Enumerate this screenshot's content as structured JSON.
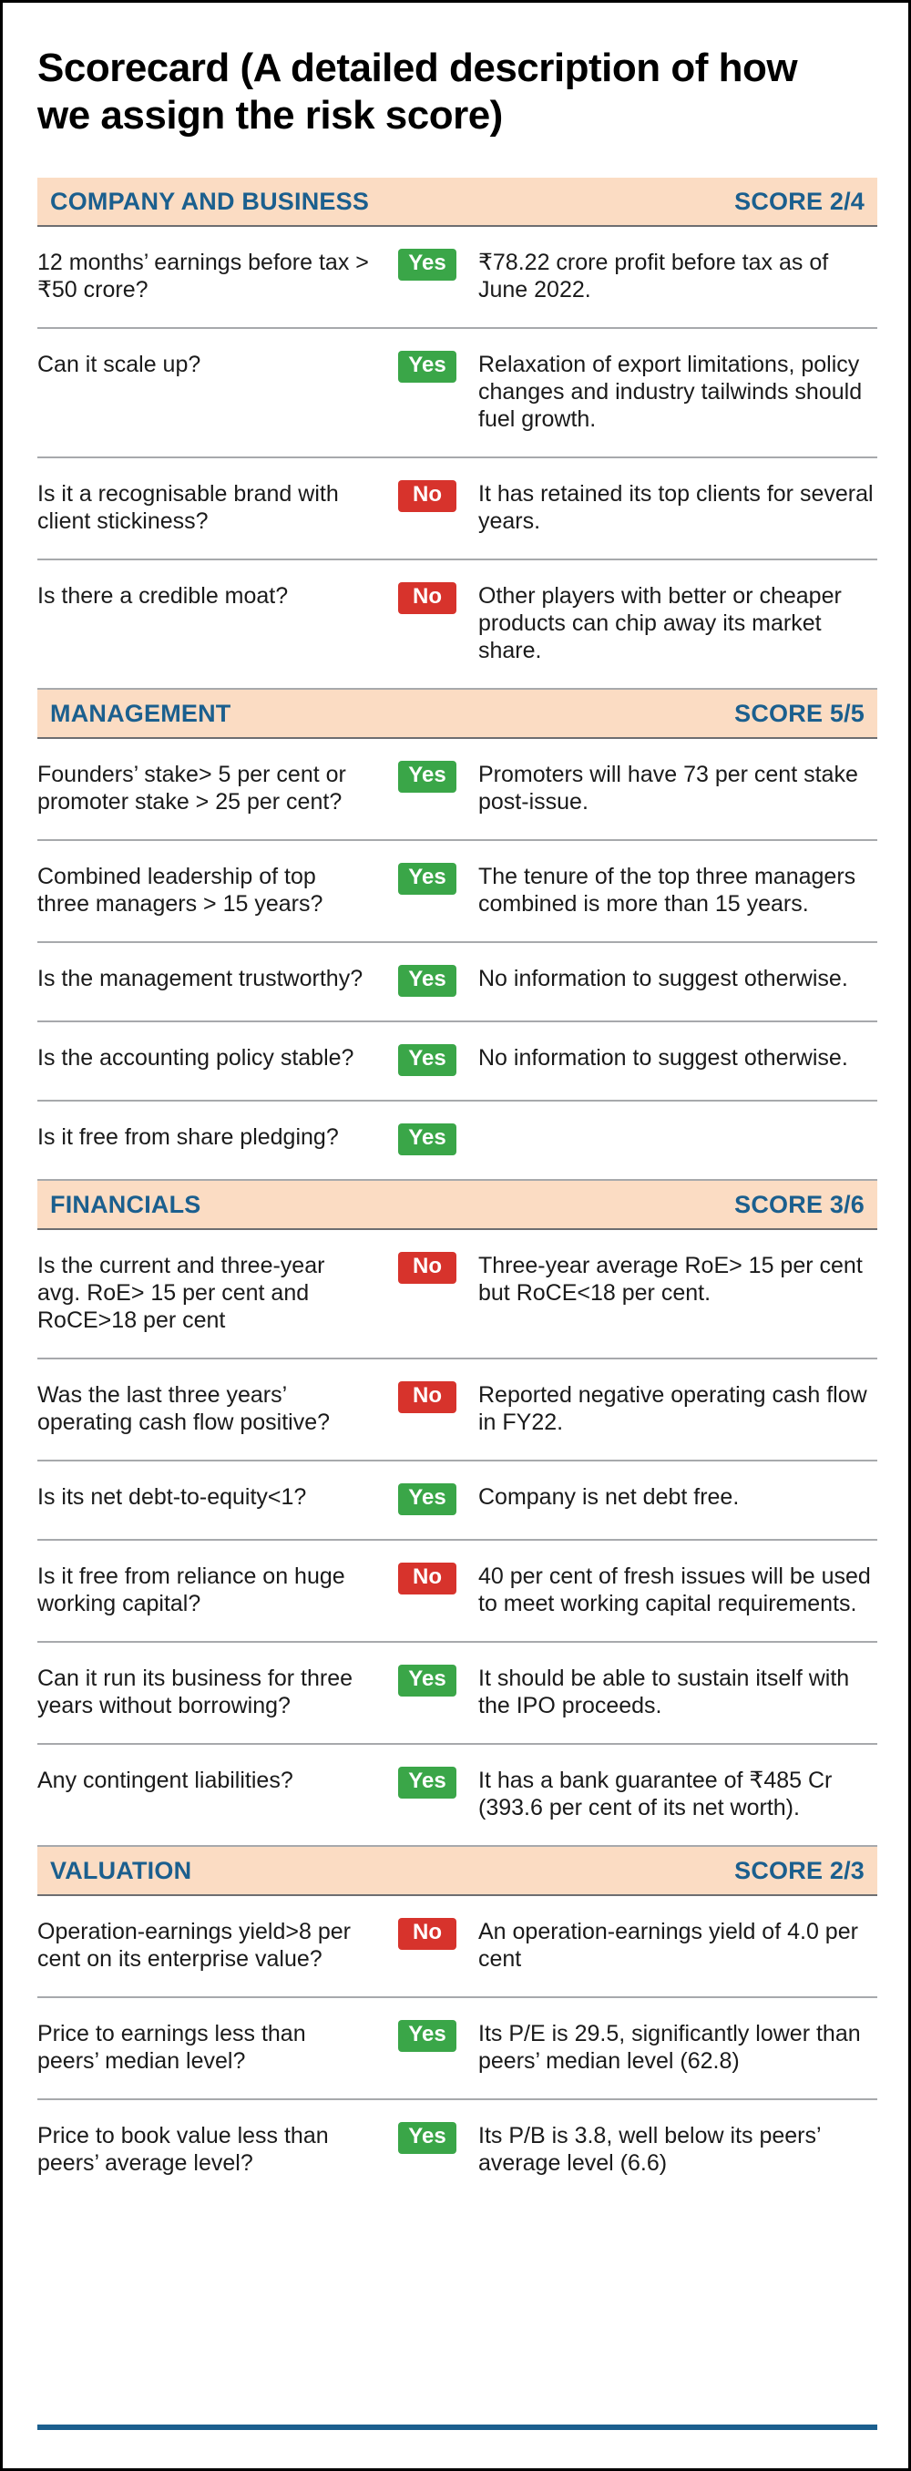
{
  "page": {
    "title_line1": "Scorecard (A detailed description of how",
    "title_line2": "we assign the risk score)"
  },
  "colors": {
    "border": "#000000",
    "title": "#000000",
    "text": "#1a1a1a",
    "header_bg": "#fbdcc3",
    "header_text": "#1b5f8e",
    "header_rule": "#6d6e71",
    "divider": "#a7a9ac",
    "yes_bg": "#3aa648",
    "no_bg": "#d7332c",
    "badge_text": "#ffffff",
    "footer_line": "#1b5f8e"
  },
  "sections": [
    {
      "name": "COMPANY AND BUSINESS",
      "score": "SCORE 2/4",
      "rows": [
        {
          "question": "12 months’ earnings before tax > ₹50 crore?",
          "answer": "Yes",
          "comment": "₹78.22 crore profit before tax as of June 2022."
        },
        {
          "question": "Can it scale up?",
          "answer": "Yes",
          "comment": "Relaxation of export limitations, policy changes and industry tailwinds should fuel growth."
        },
        {
          "question": "Is it a recognisable brand with client stickiness?",
          "answer": "No",
          "comment": "It has retained its top clients for several years."
        },
        {
          "question": "Is there a credible moat?",
          "answer": "No",
          "comment": "Other players with better or cheaper products can chip away its market share."
        }
      ]
    },
    {
      "name": "MANAGEMENT",
      "score": "SCORE 5/5",
      "rows": [
        {
          "question": "Founders’ stake> 5 per cent or promoter stake > 25 per cent?",
          "answer": "Yes",
          "comment": "Promoters will have 73 per cent stake post-issue."
        },
        {
          "question": "Combined leadership of top three managers > 15 years?",
          "answer": "Yes",
          "comment": "The tenure of the top three managers combined is more than 15 years."
        },
        {
          "question": "Is the management trustworthy?",
          "answer": "Yes",
          "comment": "No information to suggest otherwise."
        },
        {
          "question": "Is the accounting policy stable?",
          "answer": "Yes",
          "comment": "No information to suggest otherwise."
        },
        {
          "question": "Is it free from share pledging?",
          "answer": "Yes",
          "comment": ""
        }
      ]
    },
    {
      "name": "FINANCIALS",
      "score": "SCORE 3/6",
      "rows": [
        {
          "question": "Is the current and three-year avg. RoE> 15 per cent and RoCE>18 per cent",
          "answer": "No",
          "comment": "Three-year average RoE> 15 per cent but RoCE<18 per cent."
        },
        {
          "question": "Was the last three years’ operating cash flow positive?",
          "answer": "No",
          "comment": "Reported negative operating cash flow in FY22."
        },
        {
          "question": "Is its net debt-to-equity<1?",
          "answer": "Yes",
          "comment": "Company is net debt free."
        },
        {
          "question": "Is it free from reliance on huge working capital?",
          "answer": "No",
          "comment": "40 per cent of fresh issues will be used to meet working capital requirements."
        },
        {
          "question": "Can it run its business for three years without borrowing?",
          "answer": "Yes",
          "comment": "It should be able to sustain itself with the IPO proceeds."
        },
        {
          "question": "Any contingent liabilities?",
          "answer": "Yes",
          "comment": "It has a bank guarantee of ₹485 Cr (393.6 per cent of its net worth)."
        }
      ]
    },
    {
      "name": "VALUATION",
      "score": "SCORE 2/3",
      "rows": [
        {
          "question": "Operation-earnings yield>8 per cent on its enterprise value?",
          "answer": "No",
          "comment": "An operation-earnings yield of 4.0 per cent"
        },
        {
          "question": "Price to earnings less than peers’ median level?",
          "answer": "Yes",
          "comment": "Its P/E is 29.5, significantly lower than peers’ median level (62.8)"
        },
        {
          "question": "Price to book value less than peers’ average level?",
          "answer": "Yes",
          "comment": "Its P/B is 3.8, well below its peers’ average level (6.6)"
        }
      ]
    }
  ]
}
